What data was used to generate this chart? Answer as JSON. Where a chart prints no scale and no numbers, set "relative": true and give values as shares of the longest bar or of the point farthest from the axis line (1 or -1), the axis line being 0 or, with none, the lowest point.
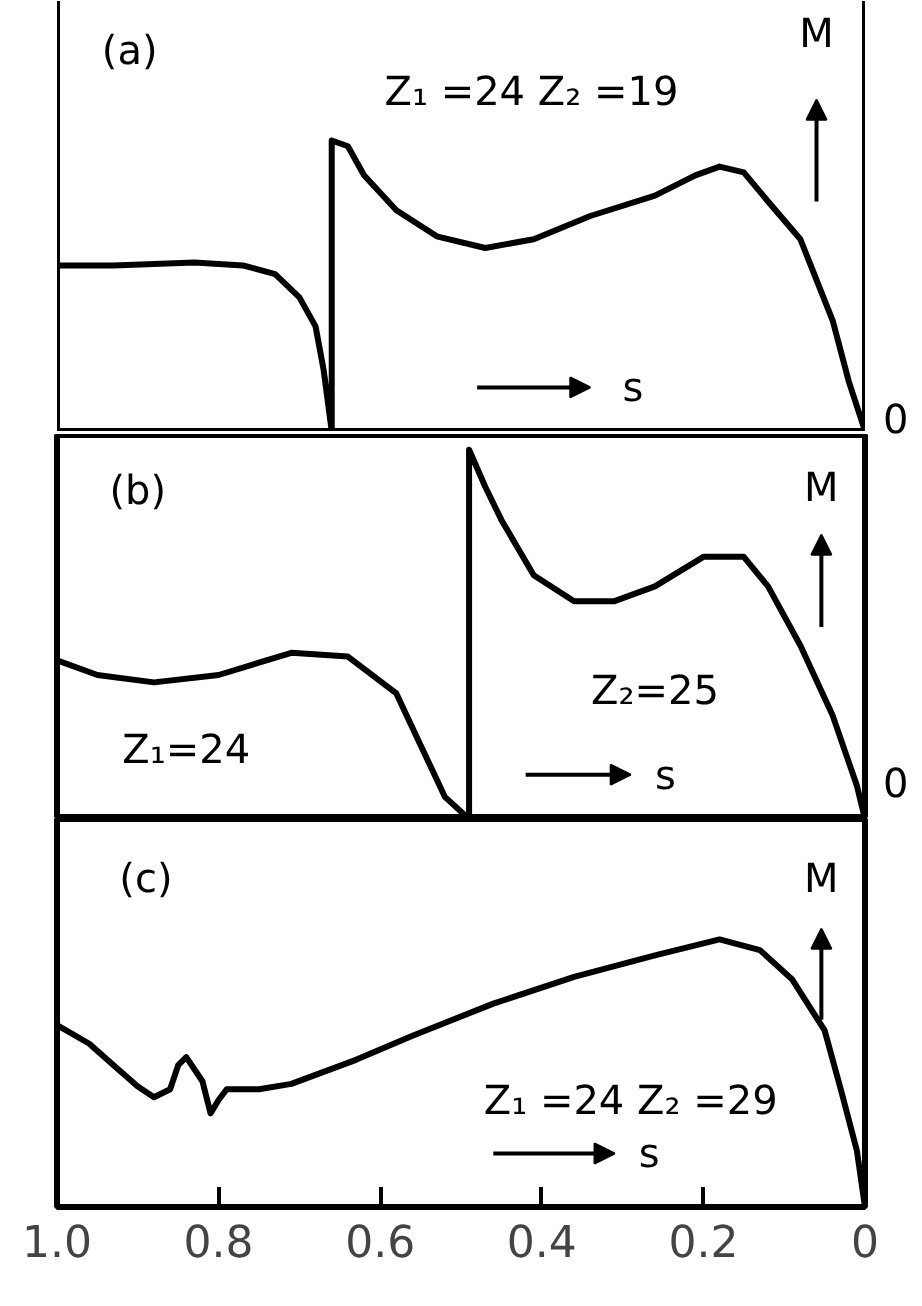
{
  "chart_data": [
    {
      "type": "line",
      "title": "(a)",
      "xlabel": "s",
      "ylabel": "M",
      "relative": true,
      "xlim": [
        1.0,
        0
      ],
      "tick_labels": false,
      "annotations": [
        "Z₁ =24  Z₂ =19",
        "0"
      ],
      "series": [
        {
          "color": "#000000",
          "x": [
            1.0,
            0.93,
            0.83,
            0.77,
            0.73,
            0.7,
            0.68,
            0.67,
            0.66,
            0.66,
            0.64,
            0.62,
            0.58,
            0.53,
            0.47,
            0.41,
            0.34,
            0.26,
            0.21,
            0.18,
            0.15,
            0.12,
            0.08,
            0.04,
            0.02,
            0
          ],
          "values": [
            0.57,
            0.57,
            0.58,
            0.57,
            0.54,
            0.46,
            0.36,
            0.21,
            0,
            1.0,
            0.98,
            0.88,
            0.76,
            0.67,
            0.63,
            0.66,
            0.74,
            0.81,
            0.88,
            0.91,
            0.89,
            0.79,
            0.66,
            0.38,
            0.17,
            0
          ]
        }
      ]
    },
    {
      "type": "line",
      "title": "(b)",
      "xlabel": "s",
      "ylabel": "M",
      "relative": true,
      "xlim": [
        1.0,
        0
      ],
      "tick_labels": false,
      "annotations": [
        "Z₁=24",
        "Z₂=25",
        "0"
      ],
      "series": [
        {
          "color": "#000000",
          "x": [
            1.0,
            0.95,
            0.88,
            0.8,
            0.71,
            0.64,
            0.58,
            0.55,
            0.52,
            0.49,
            0.49,
            0.47,
            0.45,
            0.41,
            0.36,
            0.31,
            0.26,
            0.2,
            0.15,
            0.12,
            0.08,
            0.04,
            0.01,
            0
          ],
          "values": [
            0.43,
            0.39,
            0.37,
            0.39,
            0.45,
            0.44,
            0.34,
            0.2,
            0.06,
            0,
            1.0,
            0.9,
            0.81,
            0.66,
            0.59,
            0.59,
            0.63,
            0.71,
            0.71,
            0.63,
            0.47,
            0.28,
            0.09,
            0
          ]
        }
      ]
    },
    {
      "type": "line",
      "title": "(c)",
      "xlabel": "s",
      "ylabel": "M",
      "relative": true,
      "xlim": [
        1.0,
        0
      ],
      "xticks": [
        {
          "value": 1.0,
          "label": "1.0"
        },
        {
          "value": 0.8,
          "label": "0.8"
        },
        {
          "value": 0.6,
          "label": "0.6"
        },
        {
          "value": 0.4,
          "label": "0.4"
        },
        {
          "value": 0.2,
          "label": "0.2"
        },
        0
      ],
      "tick_labels": "x",
      "annotations": [
        "Z₁ =24 Z₂ =29"
      ],
      "series": [
        {
          "color": "#000000",
          "x": [
            1.0,
            0.96,
            0.93,
            0.9,
            0.88,
            0.86,
            0.85,
            0.84,
            0.82,
            0.81,
            0.8,
            0.79,
            0.75,
            0.71,
            0.63,
            0.56,
            0.46,
            0.36,
            0.26,
            0.18,
            0.13,
            0.09,
            0.05,
            0.03,
            0.01,
            0
          ],
          "values": [
            0.68,
            0.61,
            0.53,
            0.45,
            0.41,
            0.44,
            0.53,
            0.56,
            0.47,
            0.35,
            0.4,
            0.44,
            0.44,
            0.46,
            0.55,
            0.64,
            0.76,
            0.86,
            0.94,
            1.0,
            0.96,
            0.85,
            0.66,
            0.44,
            0.21,
            0
          ]
        }
      ]
    }
  ]
}
